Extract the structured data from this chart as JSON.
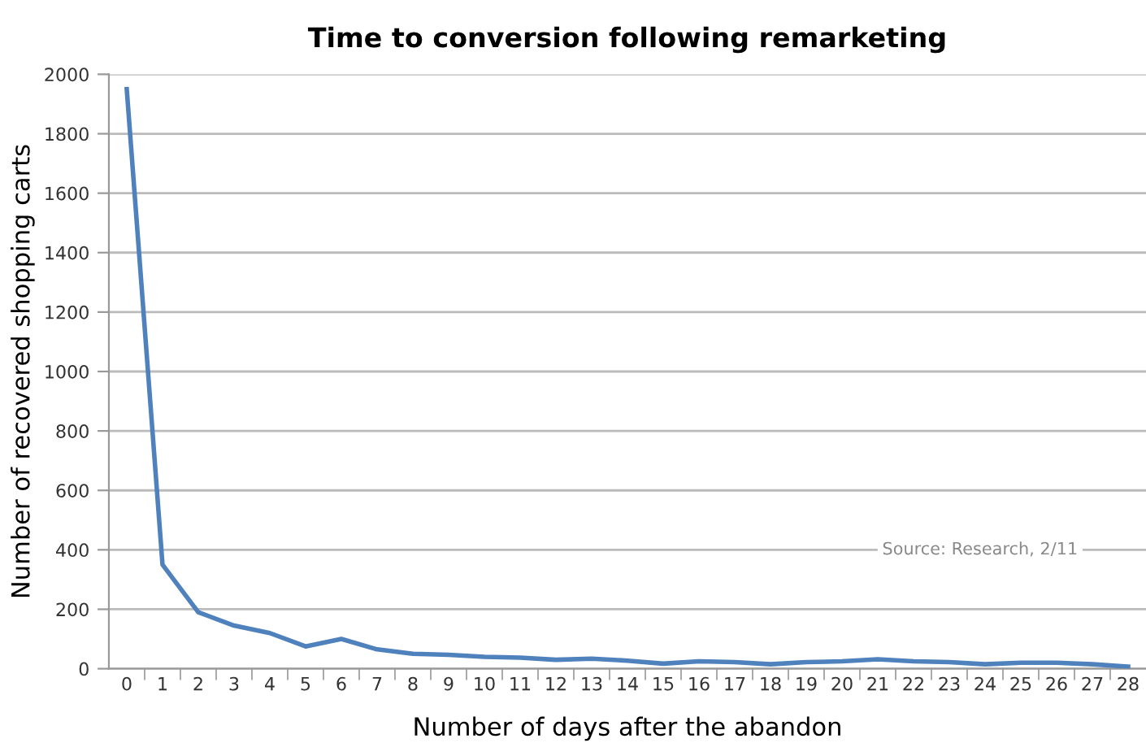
{
  "chart_data": {
    "type": "line",
    "title": "Time to conversion following remarketing",
    "xlabel": "Number of days after the abandon",
    "ylabel": "Number of recovered shopping carts",
    "categories": [
      "0",
      "1",
      "2",
      "3",
      "4",
      "5",
      "6",
      "7",
      "8",
      "9",
      "10",
      "11",
      "12",
      "13",
      "14",
      "15",
      "16",
      "17",
      "18",
      "19",
      "20",
      "21",
      "22",
      "23",
      "24",
      "25",
      "26",
      "27",
      "28"
    ],
    "series": [
      {
        "color": "#4f81bd",
        "values": [
          1950,
          350,
          190,
          145,
          120,
          75,
          100,
          65,
          50,
          47,
          40,
          37,
          30,
          34,
          27,
          17,
          25,
          22,
          15,
          22,
          25,
          32,
          25,
          22,
          15,
          20,
          20,
          15,
          7
        ]
      }
    ],
    "ylim": [
      0,
      2000
    ],
    "yticks": [
      0,
      200,
      400,
      600,
      800,
      1000,
      1200,
      1400,
      1600,
      1800,
      2000
    ],
    "grid": "y",
    "marker": "none",
    "line_style": "solid",
    "annotations": [
      "Source: Research, 2/11"
    ]
  }
}
